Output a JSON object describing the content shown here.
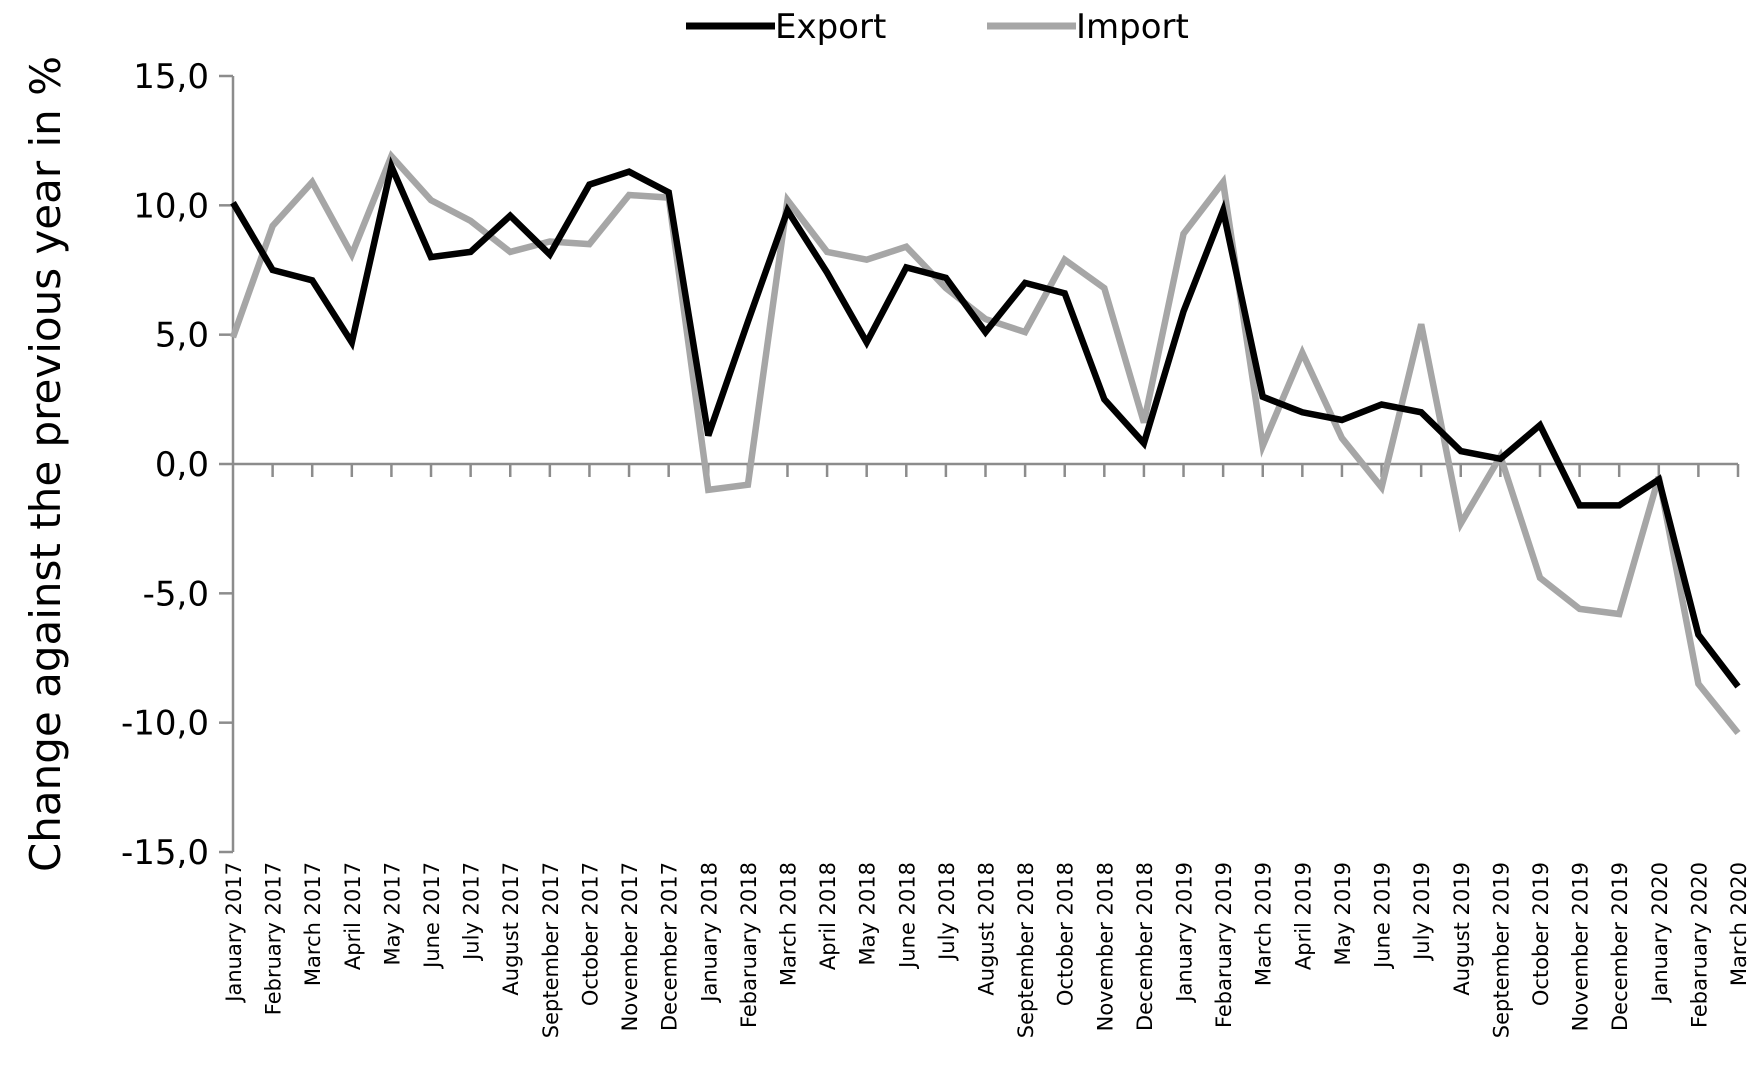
{
  "chart_data": {
    "type": "line",
    "ylabel": "Change against the previous year in %",
    "xlabel": "",
    "ylim": [
      -15,
      15
    ],
    "yticks": [
      "15,0",
      "10,0",
      "5,0",
      "0,0",
      "-5,0",
      "-10,0",
      "-15,0"
    ],
    "ytick_values": [
      15,
      10,
      5,
      0,
      -5,
      -10,
      -15
    ],
    "legend_position": "top-center",
    "categories": [
      "January 2017",
      "February 2017",
      "March 2017",
      "April 2017",
      "May 2017",
      "June 2017",
      "July 2017",
      "August 2017",
      "September 2017",
      "October 2017",
      "November 2017",
      "December 2017",
      "January 2018",
      "Febaruary 2018",
      "March 2018",
      "April 2018",
      "May 2018",
      "June 2018",
      "July 2018",
      "August 2018",
      "September 2018",
      "October 2018",
      "November 2018",
      "December 2018",
      "January 2019",
      "Febaruary 2019",
      "March 2019",
      "April 2019",
      "May 2019",
      "June 2019",
      "July 2019",
      "August 2019",
      "September 2019",
      "October 2019",
      "November 2019",
      "December 2019",
      "January 2020",
      "Febaruary 2020",
      "March 2020"
    ],
    "series": [
      {
        "name": "Export",
        "color": "#000000",
        "values": [
          10.1,
          7.5,
          7.1,
          4.7,
          11.5,
          8.0,
          8.2,
          9.6,
          8.1,
          10.8,
          11.3,
          10.5,
          1.1,
          5.5,
          9.8,
          7.4,
          4.7,
          7.6,
          7.2,
          5.1,
          7.0,
          6.6,
          2.5,
          0.8,
          5.9,
          9.8,
          2.6,
          2.0,
          1.7,
          2.3,
          2.0,
          0.5,
          0.2,
          1.5,
          -1.6,
          -1.6,
          -0.6,
          -6.6,
          -8.6
        ]
      },
      {
        "name": "Import",
        "color": "#a6a6a6",
        "values": [
          4.9,
          9.2,
          10.9,
          8.1,
          11.9,
          10.2,
          9.4,
          8.2,
          8.6,
          8.5,
          10.4,
          10.3,
          -1.0,
          -0.8,
          10.2,
          8.2,
          7.9,
          8.4,
          6.8,
          5.6,
          5.1,
          7.9,
          6.8,
          1.6,
          8.9,
          10.9,
          0.7,
          4.3,
          1.0,
          -0.9,
          5.4,
          -2.3,
          0.3,
          -4.4,
          -5.6,
          -5.8,
          -0.5,
          -8.5,
          -10.4
        ]
      }
    ]
  }
}
